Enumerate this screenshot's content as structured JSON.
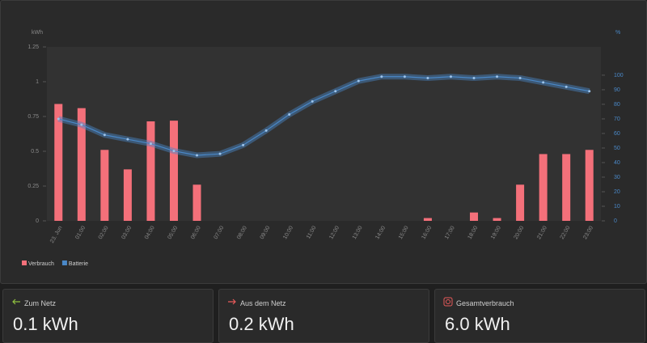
{
  "chart_data": {
    "type": "bar_line",
    "y_unit": "kWh",
    "y2_unit": "%",
    "categories": [
      "23. Jun",
      "01:00",
      "02:00",
      "03:00",
      "04:00",
      "05:00",
      "06:00",
      "07:00",
      "08:00",
      "09:00",
      "10:00",
      "11:00",
      "12:00",
      "13:00",
      "14:00",
      "15:00",
      "16:00",
      "17:00",
      "18:00",
      "19:00",
      "20:00",
      "21:00",
      "22:00",
      "23:00"
    ],
    "series": [
      {
        "name": "Verbrauch",
        "color": "#f4707a",
        "type": "bar",
        "values": [
          0.84,
          0.81,
          0.51,
          0.37,
          0.715,
          0.72,
          0.26,
          0,
          0,
          0,
          0,
          0,
          0,
          0,
          0,
          0,
          0.02,
          0,
          0.06,
          0.02,
          0.26,
          0.48,
          0.48,
          0.51
        ]
      },
      {
        "name": "Batterie",
        "color": "#4a88c7",
        "type": "line",
        "axis": "y2",
        "values": [
          70,
          66,
          59,
          56,
          53,
          48,
          45,
          46,
          52,
          62,
          73,
          82,
          89,
          96,
          99,
          99,
          98,
          99,
          98,
          99,
          98,
          95,
          92,
          89
        ]
      }
    ],
    "ylim": [
      0,
      1.25
    ],
    "yticks": [
      0,
      0.25,
      0.5,
      0.75,
      1,
      1.25
    ],
    "y2lim": [
      0,
      119.4
    ],
    "y2ticks": [
      0,
      10,
      20,
      30,
      40,
      50,
      60,
      70,
      80,
      90,
      100
    ]
  },
  "cards": [
    {
      "title": "Zum Netz",
      "value": "0.1 kWh"
    },
    {
      "title": "Aus dem Netz",
      "value": "0.2 kWh"
    },
    {
      "title": "Gesamtverbrauch",
      "value": "6.0 kWh"
    }
  ]
}
